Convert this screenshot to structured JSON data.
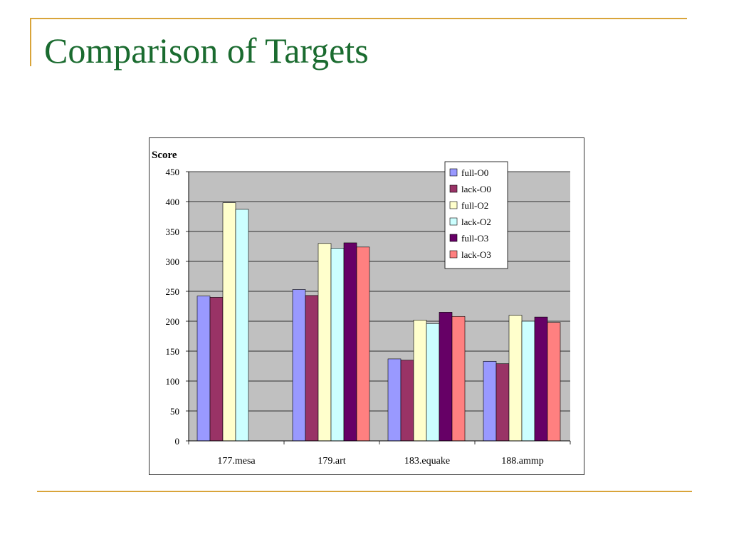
{
  "slide": {
    "title": "Comparison of Targets"
  },
  "chart_data": {
    "type": "bar",
    "title": "",
    "ylabel": "Score",
    "xlabel": "",
    "ylim": [
      0,
      450
    ],
    "yticks": [
      0,
      50,
      100,
      150,
      200,
      250,
      300,
      350,
      400,
      450
    ],
    "grid": true,
    "legend_position": "top-right",
    "categories": [
      "177.mesa",
      "179.art",
      "183.equake",
      "188.ammp"
    ],
    "series": [
      {
        "name": "full-O0",
        "color": "#9999ff",
        "values": [
          242,
          253,
          137,
          133
        ]
      },
      {
        "name": "lack-O0",
        "color": "#993366",
        "values": [
          240,
          243,
          135,
          129
        ]
      },
      {
        "name": "full-O2",
        "color": "#ffffcc",
        "values": [
          398,
          330,
          202,
          210
        ]
      },
      {
        "name": "lack-O2",
        "color": "#ccffff",
        "values": [
          387,
          322,
          196,
          200
        ]
      },
      {
        "name": "full-O3",
        "color": "#660066",
        "values": [
          null,
          331,
          215,
          207
        ]
      },
      {
        "name": "lack-O3",
        "color": "#ff8080",
        "values": [
          null,
          324,
          208,
          198
        ]
      }
    ]
  }
}
